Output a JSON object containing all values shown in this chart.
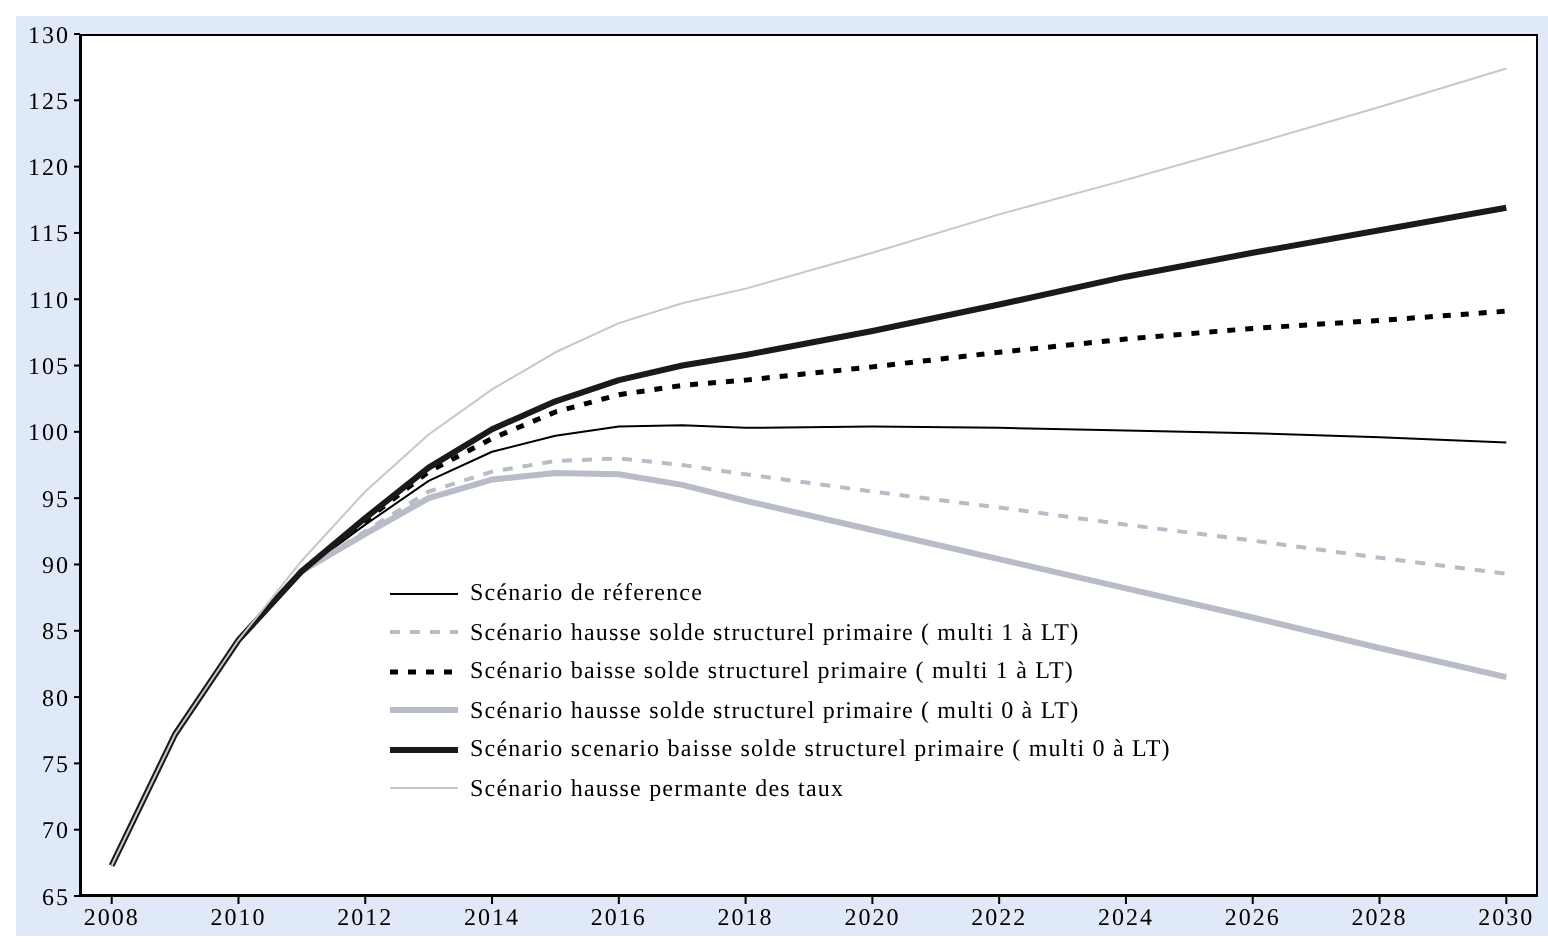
{
  "chart_data": {
    "type": "line",
    "x": [
      2008,
      2009,
      2010,
      2011,
      2012,
      2013,
      2014,
      2015,
      2016,
      2017,
      2018,
      2020,
      2022,
      2024,
      2026,
      2028,
      2030
    ],
    "series": [
      {
        "name": "Scénario de réference",
        "color": "#000000",
        "line_style": "solid",
        "values": [
          67.3,
          77.2,
          84.3,
          89.5,
          93,
          96.3,
          98.5,
          99.7,
          100.4,
          100.5,
          100.3,
          100.4,
          100.3,
          100.1,
          99.9,
          99.6,
          99.2
        ]
      },
      {
        "name": "Scénario hausse solde structurel primaire ( multi 1 à LT)",
        "color": "#b8bcc8",
        "line_style": "dashed",
        "values": [
          67.3,
          77.2,
          84.3,
          89.5,
          92.5,
          95.5,
          97,
          97.8,
          98,
          97.5,
          96.8,
          95.5,
          94.3,
          93,
          91.8,
          90.5,
          89.3
        ]
      },
      {
        "name": "Scénario baisse solde structurel primaire ( multi 1 à LT)",
        "color": "#000000",
        "line_style": "dashed",
        "values": [
          67.3,
          77.2,
          84.3,
          89.5,
          93.3,
          97,
          99.5,
          101.5,
          102.8,
          103.5,
          103.9,
          104.9,
          106,
          107,
          107.8,
          108.4,
          109.1
        ]
      },
      {
        "name": "Scénario hausse solde structurel primaire ( multi 0 à LT)",
        "color": "#b8bcc8",
        "line_style": "solid",
        "values": [
          67.3,
          77.2,
          84.3,
          89.5,
          92.3,
          95,
          96.4,
          96.9,
          96.8,
          96,
          94.8,
          92.6,
          90.4,
          88.2,
          86,
          83.7,
          81.5
        ]
      },
      {
        "name": "Scénario scenario baisse solde structurel primaire ( multi 0 à LT)",
        "color": "#1a1a1a",
        "line_style": "solid",
        "values": [
          67.3,
          77.2,
          84.3,
          89.5,
          93.5,
          97.3,
          100.2,
          102.3,
          103.9,
          105,
          105.8,
          107.6,
          109.6,
          111.7,
          113.5,
          115.2,
          116.9
        ]
      },
      {
        "name": "Scénario hausse permante des taux",
        "color": "#c4c7cf",
        "line_style": "solid",
        "values": [
          67.3,
          77.2,
          84.3,
          90.3,
          95.5,
          99.8,
          103.2,
          106,
          108.2,
          109.7,
          110.8,
          113.5,
          116.4,
          119,
          121.7,
          124.5,
          127.4
        ]
      }
    ],
    "xlim": [
      2007.5,
      2030.5
    ],
    "xticks": [
      2008,
      2010,
      2012,
      2014,
      2016,
      2018,
      2020,
      2022,
      2024,
      2026,
      2028,
      2030
    ],
    "ylim": [
      65,
      130
    ],
    "yticks": [
      65,
      70,
      75,
      80,
      85,
      90,
      95,
      100,
      105,
      110,
      115,
      120,
      125,
      130
    ],
    "grid": false,
    "legend": "bottom",
    "marker": "none"
  }
}
